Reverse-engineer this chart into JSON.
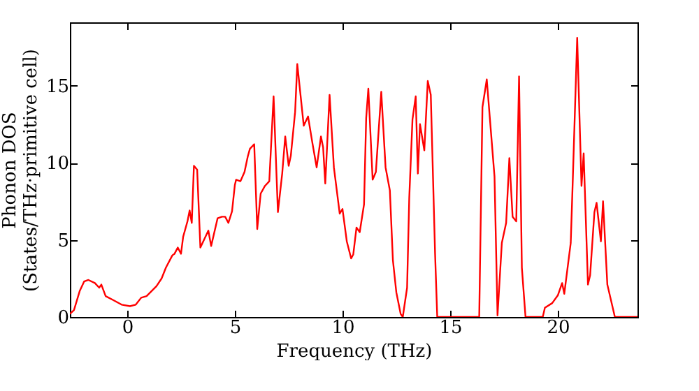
{
  "chart_data": {
    "type": "line",
    "xlabel": "Frequency (THz)",
    "ylabel": "Phonon DOS\n(States/THz·primitive cell)",
    "xlim": [
      -2.66,
      23.7
    ],
    "ylim": [
      0,
      19.1
    ],
    "xticks": [
      0,
      5,
      10,
      15,
      20
    ],
    "yticks": [
      0,
      5,
      10,
      15
    ],
    "grid": false,
    "legend": false,
    "series": [
      {
        "color": "#ff0000",
        "x": [
          -2.66,
          -2.47,
          -2.2,
          -2.0,
          -1.8,
          -1.5,
          -1.3,
          -1.2,
          -1.0,
          -0.65,
          -0.26,
          0.13,
          0.4,
          0.65,
          0.9,
          1.36,
          1.6,
          1.8,
          2.1,
          2.2,
          2.35,
          2.5,
          2.6,
          2.8,
          2.9,
          3.0,
          3.1,
          3.25,
          3.4,
          3.77,
          3.9,
          4.2,
          4.4,
          4.55,
          4.7,
          4.87,
          5.0,
          5.06,
          5.26,
          5.45,
          5.6,
          5.7,
          5.9,
          6.04,
          6.2,
          6.4,
          6.6,
          6.8,
          7.0,
          7.2,
          7.34,
          7.5,
          7.6,
          7.8,
          7.9,
          8.2,
          8.4,
          8.6,
          8.8,
          9.0,
          9.1,
          9.2,
          9.4,
          9.6,
          9.87,
          10.0,
          10.2,
          10.4,
          10.5,
          10.65,
          10.8,
          11.0,
          11.1,
          11.2,
          11.4,
          11.55,
          11.8,
          12.0,
          12.2,
          12.34,
          12.5,
          12.7,
          12.8,
          13.0,
          13.1,
          13.25,
          13.4,
          13.5,
          13.6,
          13.8,
          13.96,
          14.1,
          14.3,
          14.4,
          16.35,
          16.5,
          16.7,
          17.06,
          17.2,
          17.4,
          17.6,
          17.75,
          17.9,
          18.07,
          18.2,
          18.33,
          18.5,
          19.3,
          19.4,
          19.74,
          20.0,
          20.2,
          20.3,
          20.6,
          20.7,
          20.9,
          21.1,
          21.2,
          21.4,
          21.5,
          21.7,
          21.8,
          22.0,
          22.1,
          22.3,
          22.65,
          23.7
        ],
        "values": [
          0.2,
          0.45,
          1.7,
          2.3,
          2.4,
          2.2,
          1.9,
          2.1,
          1.35,
          1.1,
          0.8,
          0.7,
          0.8,
          1.25,
          1.35,
          2.0,
          2.5,
          3.2,
          4.0,
          4.1,
          4.5,
          4.1,
          5.2,
          6.2,
          6.9,
          6.1,
          9.8,
          9.55,
          4.5,
          5.6,
          4.6,
          6.4,
          6.5,
          6.5,
          6.1,
          6.85,
          8.55,
          8.9,
          8.8,
          9.4,
          10.4,
          10.9,
          11.2,
          5.7,
          8.0,
          8.5,
          8.8,
          14.3,
          6.8,
          9.3,
          11.7,
          9.8,
          10.45,
          13.3,
          16.4,
          12.4,
          13.0,
          11.3,
          9.7,
          11.7,
          11.0,
          8.65,
          14.4,
          9.7,
          6.7,
          7.0,
          4.9,
          3.8,
          4.05,
          5.8,
          5.5,
          7.3,
          12.9,
          14.8,
          8.9,
          9.4,
          14.6,
          9.7,
          8.2,
          3.7,
          1.6,
          0.2,
          0,
          1.9,
          7.7,
          12.8,
          14.3,
          9.3,
          12.5,
          10.8,
          15.3,
          14.4,
          4.1,
          0,
          0,
          13.6,
          15.4,
          9.1,
          0.1,
          4.8,
          6.1,
          10.3,
          6.5,
          6.2,
          15.6,
          3.2,
          0,
          0,
          0.6,
          0.9,
          1.4,
          2.2,
          1.5,
          4.8,
          9.1,
          18.1,
          8.5,
          10.6,
          2.1,
          2.7,
          6.8,
          7.4,
          4.9,
          7.5,
          2.1,
          0,
          0
        ]
      }
    ]
  }
}
